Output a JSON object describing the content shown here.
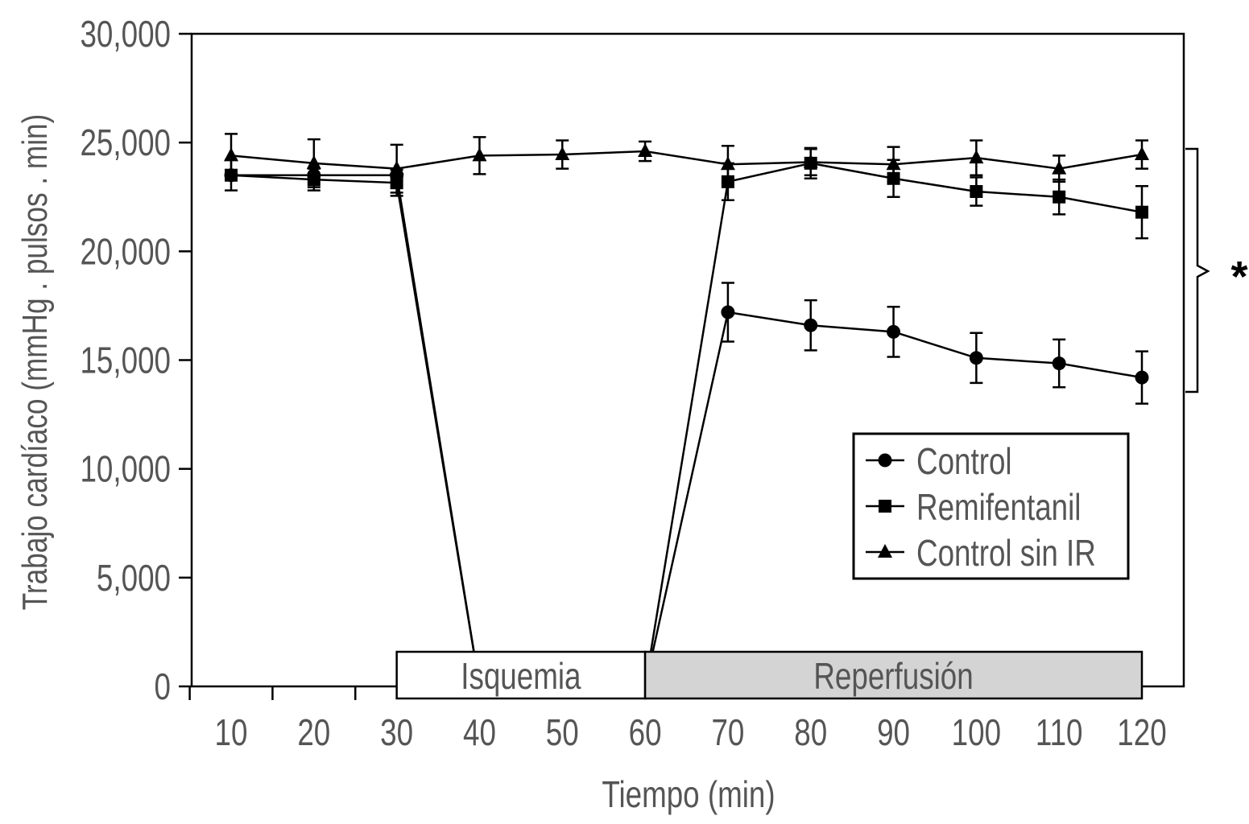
{
  "chart_data": {
    "type": "line",
    "title": "",
    "xlabel": "Tiempo (min)",
    "ylabel": "Trabajo cardíaco (mmHg . pulsos . min)",
    "xlim": [
      5,
      125
    ],
    "ylim": [
      0,
      30000
    ],
    "x": [
      10,
      20,
      30,
      40,
      50,
      60,
      70,
      80,
      90,
      100,
      110,
      120
    ],
    "x_tick_labels": [
      "10",
      "20",
      "30",
      "40",
      "50",
      "60",
      "70",
      "80",
      "90",
      "100",
      "110",
      "120"
    ],
    "y_ticks": [
      0,
      5000,
      10000,
      15000,
      20000,
      25000,
      30000
    ],
    "y_tick_labels": [
      "0",
      "5,000",
      "10,000",
      "15,000",
      "20,000",
      "25,000",
      "30,000"
    ],
    "grid": false,
    "legend_position": "bottom-right",
    "series": [
      {
        "name": "Control",
        "marker": "circle",
        "values": [
          23500,
          23500,
          23500,
          0,
          0,
          0,
          17200,
          16600,
          16300,
          15100,
          14850,
          14200
        ],
        "errors": [
          null,
          null,
          null,
          null,
          null,
          null,
          1350,
          1150,
          1150,
          1150,
          1100,
          1200
        ]
      },
      {
        "name": "Remifentanil",
        "marker": "square",
        "values": [
          23500,
          23300,
          23150,
          0,
          0,
          0,
          23200,
          24050,
          23350,
          22750,
          22500,
          21800
        ],
        "errors": [
          700,
          500,
          600,
          null,
          null,
          null,
          850,
          700,
          850,
          650,
          800,
          1200
        ]
      },
      {
        "name": "Control sin IR",
        "marker": "triangle",
        "values": [
          24400,
          24050,
          23800,
          24400,
          24450,
          24600,
          24000,
          24100,
          24000,
          24300,
          23800,
          24450
        ],
        "errors": [
          1000,
          1100,
          1100,
          850,
          650,
          450,
          850,
          600,
          800,
          800,
          600,
          650
        ]
      }
    ],
    "annotations": {
      "phases": [
        {
          "label": "Isquemia",
          "from": 30,
          "to": 60,
          "color": "#ffffff"
        },
        {
          "label": "Reperfusión",
          "from": 60,
          "to": 120,
          "color": "#d4d4d4"
        }
      ],
      "significance": "*"
    }
  }
}
